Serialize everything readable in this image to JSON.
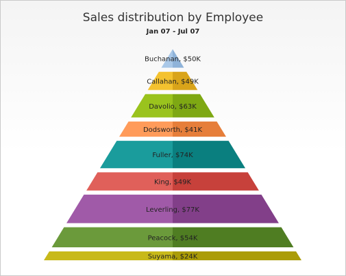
{
  "chart_data": {
    "type": "pyramid",
    "title": "Sales distribution by Employee",
    "subtitle": "Jan 07 - Jul 07",
    "unit_prefix": "$",
    "unit_suffix": "K",
    "series": [
      {
        "name": "Buchanan",
        "value": 50,
        "label": "Buchanan, $50K",
        "color": "#a9c8e8",
        "shade": "#8fb3d9"
      },
      {
        "name": "Callahan",
        "value": 49,
        "label": "Callahan, $49K",
        "color": "#f4c22f",
        "shade": "#d9a41a"
      },
      {
        "name": "Davolio",
        "value": 63,
        "label": "Davolio, $63K",
        "color": "#9ac31d",
        "shade": "#7ea813"
      },
      {
        "name": "Dodsworth",
        "value": 41,
        "label": "Dodsworth, $41K",
        "color": "#ff9b5a",
        "shade": "#e67e3a"
      },
      {
        "name": "Fuller",
        "value": 74,
        "label": "Fuller, $74K",
        "color": "#1a9c9c",
        "shade": "#0a7f7f"
      },
      {
        "name": "King",
        "value": 49,
        "label": "King, $49K",
        "color": "#e0605a",
        "shade": "#c7413b"
      },
      {
        "name": "Leverling",
        "value": 77,
        "label": "Leverling, $77K",
        "color": "#a05aa8",
        "shade": "#823f89"
      },
      {
        "name": "Peacock",
        "value": 54,
        "label": "Peacock, $54K",
        "color": "#6b9a3b",
        "shade": "#4f7d22"
      },
      {
        "name": "Suyama",
        "value": 24,
        "label": "Suyama, $24K",
        "color": "#c8b91a",
        "shade": "#ab9c08"
      }
    ]
  }
}
